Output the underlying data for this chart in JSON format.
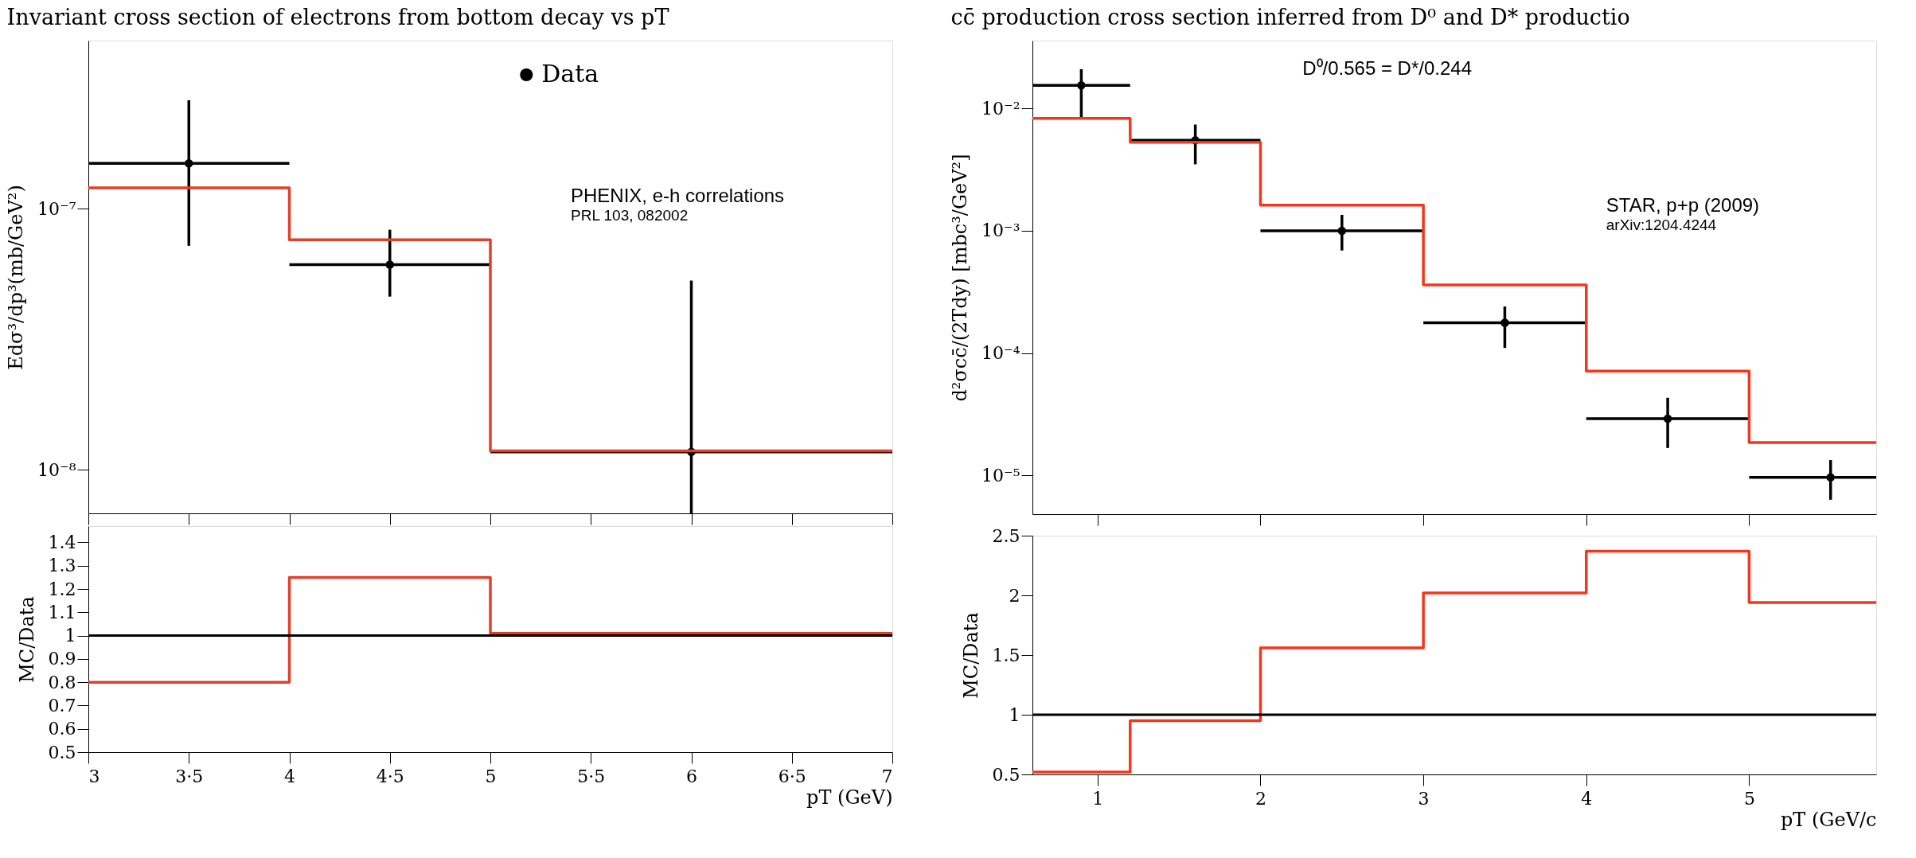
{
  "chart_data": [
    {
      "type": "scatter",
      "title": "Invariant cross section of electrons from bottom decay vs pT",
      "ylabel": "Edσ³/dp³(mb/GeV²)",
      "log": "y",
      "xlim": [
        3,
        7
      ],
      "ylim": [
        6.8e-09,
        4.4e-07
      ],
      "xticks": [
        3,
        3.5,
        4,
        4.5,
        5,
        5.5,
        6,
        6.5,
        7
      ],
      "yticks": [
        {
          "value": 1e-08,
          "label": "10⁻⁸"
        },
        {
          "value": 1e-07,
          "label": "10⁻⁷"
        }
      ],
      "tick_labels": "y",
      "legend": "top right",
      "grid": false,
      "series": [
        {
          "name": "Data",
          "type": "scatter",
          "marker": "circle",
          "color": "#000000",
          "x": [
            3.5,
            4.5,
            6
          ],
          "values": [
            1.49e-07,
            6.1e-08,
            1.17e-08
          ],
          "errors": [
            [
              7.2e-08,
              2.6e-07
            ],
            [
              4.6e-08,
              8.3e-08
            ],
            [
              6.8e-09,
              5.3e-08
            ]
          ],
          "xerrors": [
            [
              3,
              4
            ],
            [
              4,
              5
            ],
            [
              5,
              7
            ]
          ]
        },
        {
          "type": "step",
          "color": "#e0402a",
          "x": [
            3,
            4,
            5,
            7
          ],
          "values": [
            1.2e-07,
            7.6e-08,
            1.18e-08,
            1.18e-08
          ]
        }
      ],
      "annotations": [
        "PHENIX, e-h correlations",
        "PRL 103, 082002"
      ]
    },
    {
      "type": "step",
      "ylabel": "MC/Data",
      "xlabel": "pT (GeV)",
      "xlim": [
        3,
        7
      ],
      "ylim": [
        0.5,
        1.47
      ],
      "xticks": [
        3,
        {
          "value": 3.5,
          "label": "3·5"
        },
        4,
        {
          "value": 4.5,
          "label": "4·5"
        },
        5,
        {
          "value": 5.5,
          "label": "5·5"
        },
        6,
        {
          "value": 6.5,
          "label": "6·5"
        },
        7
      ],
      "yticks": [
        0.5,
        0.6,
        0.7,
        0.8,
        0.9,
        1,
        1.1,
        1.2,
        1.3,
        1.4
      ],
      "grid": false,
      "series": [
        {
          "color": "#e0402a",
          "x": [
            3,
            4,
            5,
            7
          ],
          "values": [
            0.8,
            1.25,
            1.01,
            1.01
          ]
        }
      ],
      "ref_lines": [
        {
          "axis": "y",
          "value": 1,
          "color": "#000000"
        }
      ]
    },
    {
      "type": "scatter",
      "title": "cc̄ production cross section inferred from D⁰ and D* productio",
      "ylabel": "d²σcc̄/(2Tdy) [mbc³/GeV²]",
      "log": "y",
      "xlim": [
        0.6,
        5.78
      ],
      "ylim": [
        4.8e-06,
        0.036
      ],
      "xticks": [
        1,
        2,
        3,
        4,
        5
      ],
      "yticks": [
        {
          "value": 1e-05,
          "label": "10⁻⁵"
        },
        {
          "value": 0.0001,
          "label": "10⁻⁴"
        },
        {
          "value": 0.001,
          "label": "10⁻³"
        },
        {
          "value": 0.01,
          "label": "10⁻²"
        }
      ],
      "tick_labels": "y",
      "legend": "top right",
      "grid": false,
      "series": [
        {
          "name": "Data",
          "type": "scatter",
          "marker": "circle",
          "color": "#000000",
          "x": [
            0.9,
            1.6,
            2.5,
            3.5,
            4.5,
            5.5
          ],
          "values": [
            0.0155,
            0.0055,
            0.001,
            0.000177,
            2.9e-05,
            9.6e-06
          ],
          "errors": [
            [
              0.0085,
              0.021
            ],
            [
              0.0035,
              0.0074
            ],
            [
              0.00069,
              0.00135
            ],
            [
              0.00011,
              0.00024
            ],
            [
              1.67e-05,
              4.3e-05
            ],
            [
              6.3e-06,
              1.33e-05
            ]
          ],
          "xerrors": [
            [
              0.6,
              1.2
            ],
            [
              1.2,
              2
            ],
            [
              2,
              3
            ],
            [
              3,
              4
            ],
            [
              4,
              5
            ],
            [
              5,
              5.78
            ]
          ]
        },
        {
          "type": "step",
          "color": "#f5361c",
          "x": [
            0.6,
            1.2,
            2,
            3,
            4,
            5,
            5.78
          ],
          "values": [
            0.0083,
            0.0053,
            0.00162,
            0.00036,
            7.1e-05,
            1.85e-05,
            1.85e-05
          ]
        }
      ],
      "annotations": [
        "D⁰/0.565 = D*/0.244",
        "STAR, p+p (2009)",
        "arXiv:1204.4244"
      ]
    },
    {
      "type": "step",
      "ylabel": "MC/Data",
      "xlabel": "pT (GeV/c",
      "xlim": [
        0.6,
        5.78
      ],
      "ylim": [
        0.5,
        2.5
      ],
      "xticks": [
        1,
        2,
        3,
        4,
        5
      ],
      "yticks": [
        0.5,
        1,
        1.5,
        2,
        2.5
      ],
      "grid": false,
      "series": [
        {
          "color": "#f5361c",
          "x": [
            0.6,
            1.2,
            2,
            3,
            4,
            5,
            5.78
          ],
          "values": [
            0.52,
            0.95,
            1.56,
            2.02,
            2.37,
            1.94,
            1.94
          ]
        }
      ],
      "ref_lines": [
        {
          "axis": "y",
          "value": 1,
          "color": "#000000"
        }
      ]
    }
  ]
}
